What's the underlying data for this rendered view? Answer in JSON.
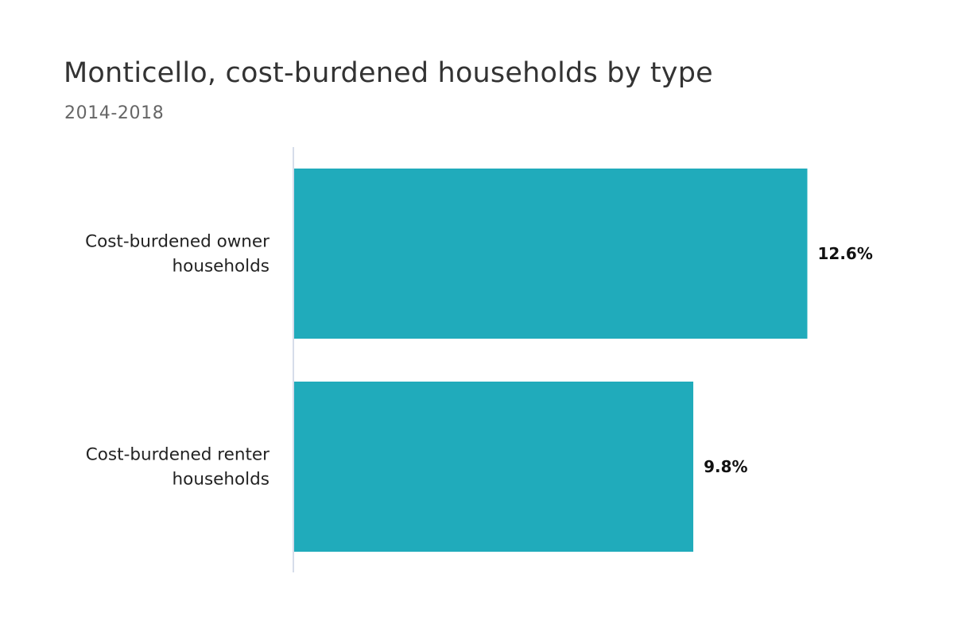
{
  "chart_data": {
    "type": "bar",
    "orientation": "horizontal",
    "title": "Monticello, cost-burdened households by type",
    "subtitle": "2014-2018",
    "categories": [
      [
        "Cost-burdened owner",
        "households"
      ],
      [
        "Cost-burdened renter",
        "households"
      ]
    ],
    "values": [
      12.6,
      9.8
    ],
    "value_labels": [
      "12.6%",
      "9.8%"
    ],
    "xlim": [
      0,
      15.03
    ],
    "grid": false,
    "legend": "none",
    "colors": {
      "bar": "#20abbb",
      "axis_line": "#c9d2e3"
    }
  }
}
